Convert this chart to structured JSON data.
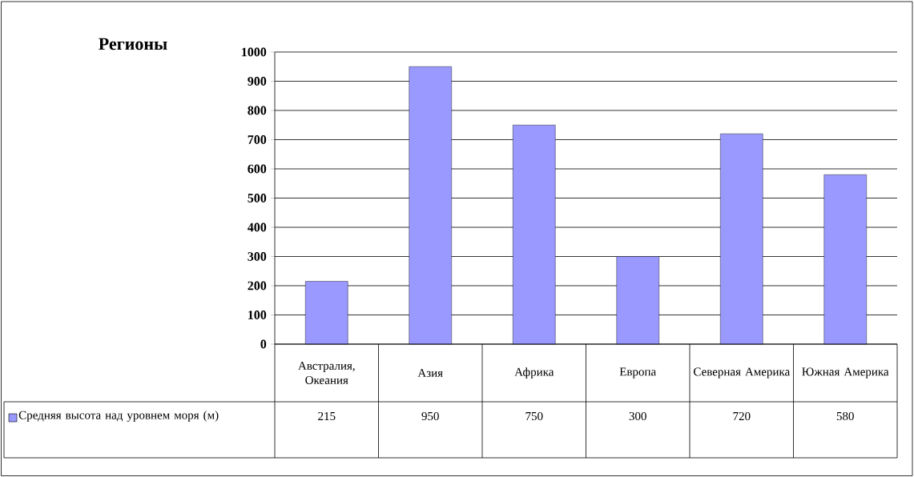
{
  "chart_data": {
    "type": "bar",
    "title": "Регионы",
    "categories": [
      "Австралия, Океания",
      "Азия",
      "Африка",
      "Европа",
      "Северная Америка",
      "Южная Америка"
    ],
    "series": [
      {
        "name": "Средняя высота над уровнем моря (м)",
        "color": "#9999ff",
        "values": [
          215,
          950,
          750,
          300,
          720,
          580
        ]
      }
    ],
    "ylim": [
      0,
      1000
    ],
    "yticks": [
      0,
      100,
      200,
      300,
      400,
      500,
      600,
      700,
      800,
      900,
      1000
    ],
    "grid": "y",
    "legend": "bottom left",
    "data_labels": true
  }
}
